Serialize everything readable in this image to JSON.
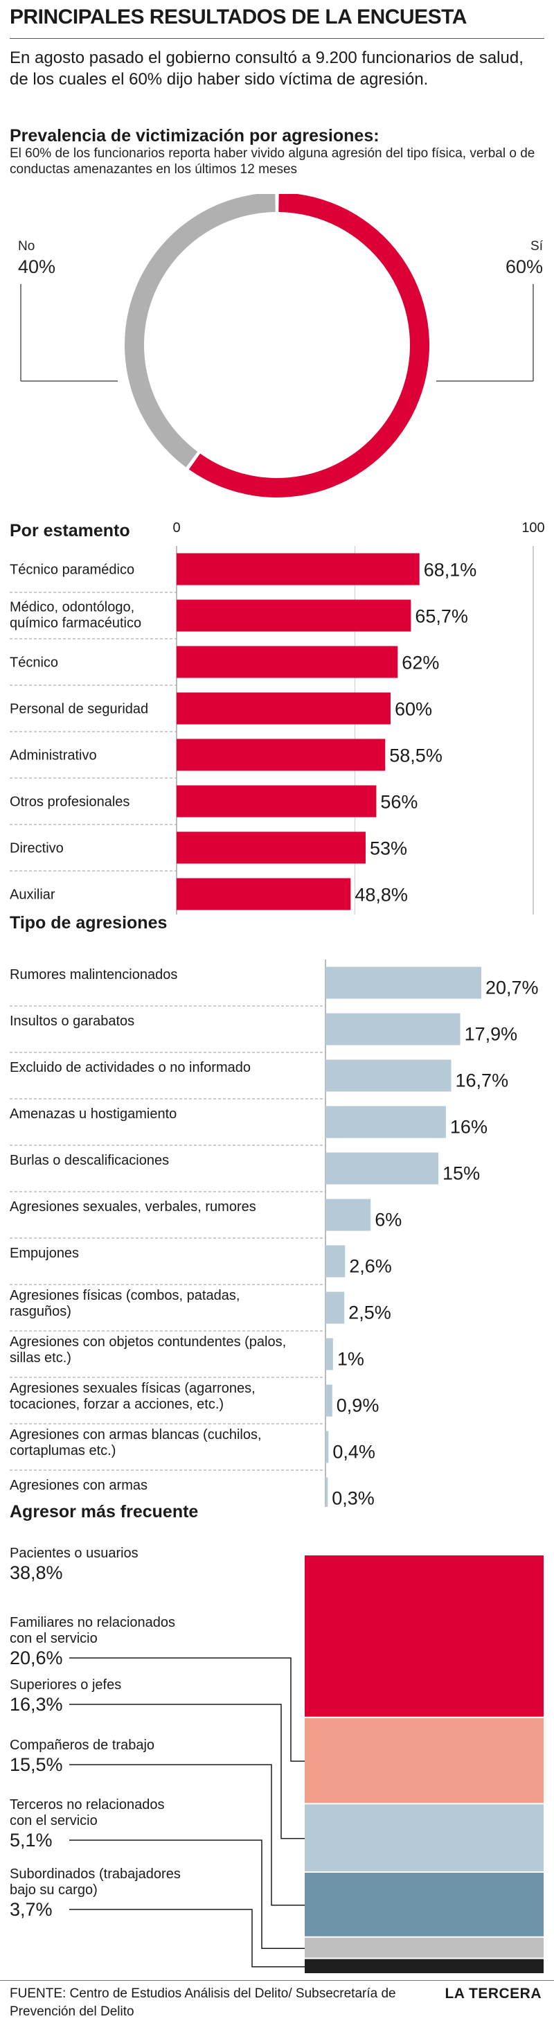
{
  "title": "PRINCIPALES RESULTADOS DE LA ENCUESTA",
  "intro": "En agosto pasado el gobierno consultó a 9.200 funcionarios de salud, de los cuales el 60% dijo haber sido víctima de agresión.",
  "prevalence": {
    "heading": "Prevalencia de victimización por agresiones:",
    "subheading": "El 60% de los funcionarios reporta haber vivido alguna agresión del tipo física, verbal o de conductas amenazantes en los últimos 12 meses",
    "no_label": "No",
    "no_value": "40%",
    "yes_label": "Sí",
    "yes_value": "60%"
  },
  "section_estamento": {
    "heading": "Por estamento"
  },
  "section_tipo": {
    "heading": "Tipo de agresiones"
  },
  "section_agresor": {
    "heading": "Agresor más frecuente"
  },
  "colors": {
    "red": "#dc0037",
    "gray": "#b0b0b0",
    "light_blue": "#b6c9d6",
    "salmon": "#f0a08a",
    "steel_blue": "#6f93a8",
    "silver": "#bfbfbf",
    "black": "#1e1e1e"
  },
  "chart_data": [
    {
      "type": "pie",
      "labels": [
        "Sí",
        "No"
      ],
      "values": [
        60,
        40
      ],
      "colors": [
        "#dc0037",
        "#b0b0b0"
      ]
    },
    {
      "type": "bar",
      "orientation": "horizontal",
      "title": "Por estamento",
      "categories": [
        "Técnico paramédico",
        "Médico, odontólogo, químico farmacéutico",
        "Técnico",
        "Personal de seguridad",
        "Administrativo",
        "Otros profesionales",
        "Directivo",
        "Auxiliar"
      ],
      "values": [
        68.1,
        65.7,
        62,
        60,
        58.5,
        56,
        53,
        48.8
      ],
      "value_labels": [
        "68,1%",
        "65,7%",
        "62%",
        "60%",
        "58,5%",
        "56%",
        "53%",
        "48,8%"
      ],
      "tick_labels": [
        "0",
        "100"
      ],
      "xlim": [
        0,
        100
      ],
      "color": "#dc0037"
    },
    {
      "type": "bar",
      "orientation": "horizontal",
      "title": "Tipo de agresiones",
      "categories": [
        "Rumores malintencionados",
        "Insultos o garabatos",
        "Excluido de actividades o no informado",
        "Amenazas u hostigamiento",
        "Burlas o descalificaciones",
        "Agresiones sexuales, verbales, rumores",
        "Empujones",
        "Agresiones físicas (combos, patadas, rasguños)",
        "Agresiones con objetos contundentes (palos, sillas etc.)",
        "Agresiones sexuales físicas (agarrones, tocaciones, forzar a acciones, etc.)",
        "Agresiones con armas blancas (cuchilos, cortaplumas etc.)",
        "Agresiones con armas"
      ],
      "values": [
        20.7,
        17.9,
        16.7,
        16,
        15,
        6,
        2.6,
        2.5,
        1,
        0.9,
        0.4,
        0.3
      ],
      "value_labels": [
        "20,7%",
        "17,9%",
        "16,7%",
        "16%",
        "15%",
        "6%",
        "2,6%",
        "2,5%",
        "1%",
        "0,9%",
        "0,4%",
        "0,3%"
      ],
      "color": "#b6c9d6"
    },
    {
      "type": "bar",
      "orientation": "stacked",
      "title": "Agresor más frecuente",
      "categories": [
        "Pacientes o usuarios",
        "Familiares no relacionados con el servicio",
        "Superiores o jefes",
        "Compañeros de trabajo",
        "Terceros no relacionados con el servicio",
        "Subordinados (trabajadores bajo su cargo)"
      ],
      "values": [
        38.8,
        20.6,
        16.3,
        15.5,
        5.1,
        3.7
      ],
      "value_labels": [
        "38,8%",
        "20,6%",
        "16,3%",
        "15,5%",
        "5,1%",
        "3,7%"
      ],
      "colors": [
        "#dc0037",
        "#f0a08a",
        "#b6c9d6",
        "#6f93a8",
        "#bfbfbf",
        "#1e1e1e"
      ]
    }
  ],
  "footer": {
    "source": "FUENTE: Centro de Estudios Análisis del Delito/ Subsecretaría de Prevención del Delito",
    "brand": "LA TERCERA"
  }
}
